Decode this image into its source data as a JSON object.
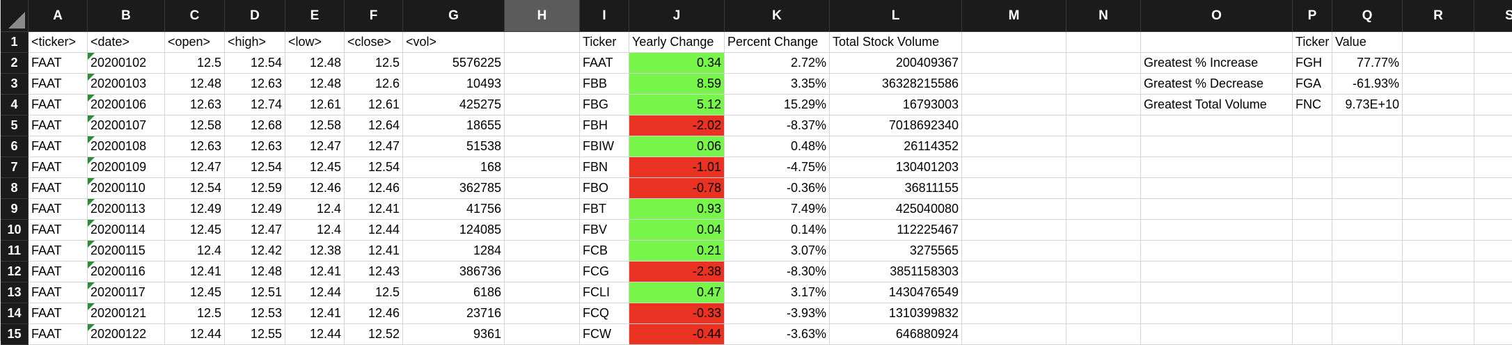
{
  "column_headers": [
    "A",
    "B",
    "C",
    "D",
    "E",
    "F",
    "G",
    "H",
    "I",
    "J",
    "K",
    "L",
    "M",
    "N",
    "O",
    "P",
    "Q",
    "R",
    "S"
  ],
  "selected_column": "H",
  "colors": {
    "positive": "#77f54a",
    "negative": "#ea3223",
    "header_bg": "#1b1b1b",
    "selected_header_bg": "#5b5b5b",
    "flag": "#2e8b3a"
  },
  "row_numbers": [
    "1",
    "2",
    "3",
    "4",
    "5",
    "6",
    "7",
    "8",
    "9",
    "10",
    "11",
    "12",
    "13",
    "14",
    "15"
  ],
  "raw_headers": [
    "<ticker>",
    "<date>",
    "<open>",
    "<high>",
    "<low>",
    "<close>",
    "<vol>"
  ],
  "raw_rows": [
    [
      "FAAT",
      "20200102",
      "12.5",
      "12.54",
      "12.48",
      "12.5",
      "5576225"
    ],
    [
      "FAAT",
      "20200103",
      "12.48",
      "12.63",
      "12.48",
      "12.6",
      "10493"
    ],
    [
      "FAAT",
      "20200106",
      "12.63",
      "12.74",
      "12.61",
      "12.61",
      "425275"
    ],
    [
      "FAAT",
      "20200107",
      "12.58",
      "12.68",
      "12.58",
      "12.64",
      "18655"
    ],
    [
      "FAAT",
      "20200108",
      "12.63",
      "12.63",
      "12.47",
      "12.47",
      "51538"
    ],
    [
      "FAAT",
      "20200109",
      "12.47",
      "12.54",
      "12.45",
      "12.54",
      "168"
    ],
    [
      "FAAT",
      "20200110",
      "12.54",
      "12.59",
      "12.46",
      "12.46",
      "362785"
    ],
    [
      "FAAT",
      "20200113",
      "12.49",
      "12.49",
      "12.4",
      "12.41",
      "41756"
    ],
    [
      "FAAT",
      "20200114",
      "12.45",
      "12.47",
      "12.4",
      "12.44",
      "124085"
    ],
    [
      "FAAT",
      "20200115",
      "12.4",
      "12.42",
      "12.38",
      "12.41",
      "1284"
    ],
    [
      "FAAT",
      "20200116",
      "12.41",
      "12.48",
      "12.41",
      "12.43",
      "386736"
    ],
    [
      "FAAT",
      "20200117",
      "12.45",
      "12.51",
      "12.44",
      "12.5",
      "6186"
    ],
    [
      "FAAT",
      "20200121",
      "12.5",
      "12.53",
      "12.41",
      "12.46",
      "23716"
    ],
    [
      "FAAT",
      "20200122",
      "12.44",
      "12.55",
      "12.44",
      "12.52",
      "9361"
    ]
  ],
  "summary_headers": [
    "Ticker",
    "Yearly Change",
    "Percent Change",
    "Total Stock Volume"
  ],
  "summary_rows": [
    [
      "FAAT",
      "0.34",
      "2.72%",
      "200409367"
    ],
    [
      "FBB",
      "8.59",
      "3.35%",
      "36328215586"
    ],
    [
      "FBG",
      "5.12",
      "15.29%",
      "16793003"
    ],
    [
      "FBH",
      "-2.02",
      "-8.37%",
      "7018692340"
    ],
    [
      "FBIW",
      "0.06",
      "0.48%",
      "26114352"
    ],
    [
      "FBN",
      "-1.01",
      "-4.75%",
      "130401203"
    ],
    [
      "FBO",
      "-0.78",
      "-0.36%",
      "36811155"
    ],
    [
      "FBT",
      "0.93",
      "7.49%",
      "425040080"
    ],
    [
      "FBV",
      "0.04",
      "0.14%",
      "112225467"
    ],
    [
      "FCB",
      "0.21",
      "3.07%",
      "3275565"
    ],
    [
      "FCG",
      "-2.38",
      "-8.30%",
      "3851158303"
    ],
    [
      "FCLI",
      "0.47",
      "3.17%",
      "1430476549"
    ],
    [
      "FCQ",
      "-0.33",
      "-3.93%",
      "1310399832"
    ],
    [
      "FCW",
      "-0.44",
      "-3.63%",
      "646880924"
    ]
  ],
  "greatest_headers": [
    "Ticker",
    "Value"
  ],
  "greatest_rows": [
    [
      "Greatest % Increase",
      "FGH",
      "77.77%"
    ],
    [
      "Greatest % Decrease",
      "FGA",
      "-61.93%"
    ],
    [
      "Greatest Total Volume",
      "FNC",
      "9.73E+10"
    ]
  ]
}
